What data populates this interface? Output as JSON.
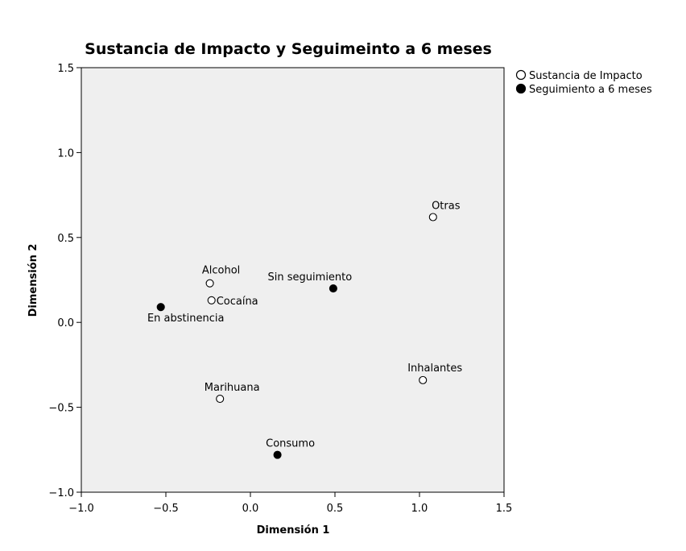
{
  "chart_data": {
    "type": "scatter",
    "title": "Sustancia de Impacto y Seguimeinto a 6 meses",
    "xlabel": "Dimensión 1",
    "ylabel": "Dimensión 2",
    "xlim": [
      -1.0,
      1.5
    ],
    "ylim": [
      -1.0,
      1.5
    ],
    "xticks": [
      -1.0,
      -0.5,
      0.0,
      0.5,
      1.0,
      1.5
    ],
    "yticks": [
      -1.0,
      -0.5,
      0.0,
      0.5,
      1.0,
      1.5
    ],
    "xtick_labels": [
      "−1.0",
      "−0.5",
      "0.0",
      "0.5",
      "1.0",
      "1.5"
    ],
    "ytick_labels": [
      "−1.0",
      "−0.5",
      "0.0",
      "0.5",
      "1.0",
      "1.5"
    ],
    "grid": false,
    "legend_position": "top-right",
    "plot_background": "#efefef",
    "series": [
      {
        "name": "Sustancia de Impacto",
        "marker": "open-circle",
        "points": [
          {
            "label": "Alcohol",
            "x": -0.24,
            "y": 0.23
          },
          {
            "label": "Cocaína",
            "x": -0.23,
            "y": 0.13
          },
          {
            "label": "Marihuana",
            "x": -0.18,
            "y": -0.45
          },
          {
            "label": "Otras",
            "x": 1.08,
            "y": 0.62
          },
          {
            "label": "Inhalantes",
            "x": 1.02,
            "y": -0.34
          }
        ]
      },
      {
        "name": "Seguimiento a 6 meses",
        "marker": "filled-circle",
        "points": [
          {
            "label": "En abstinencia",
            "x": -0.53,
            "y": 0.09
          },
          {
            "label": "Sin seguimiento",
            "x": 0.49,
            "y": 0.2
          },
          {
            "label": "Consumo",
            "x": 0.16,
            "y": -0.78
          }
        ]
      }
    ]
  }
}
